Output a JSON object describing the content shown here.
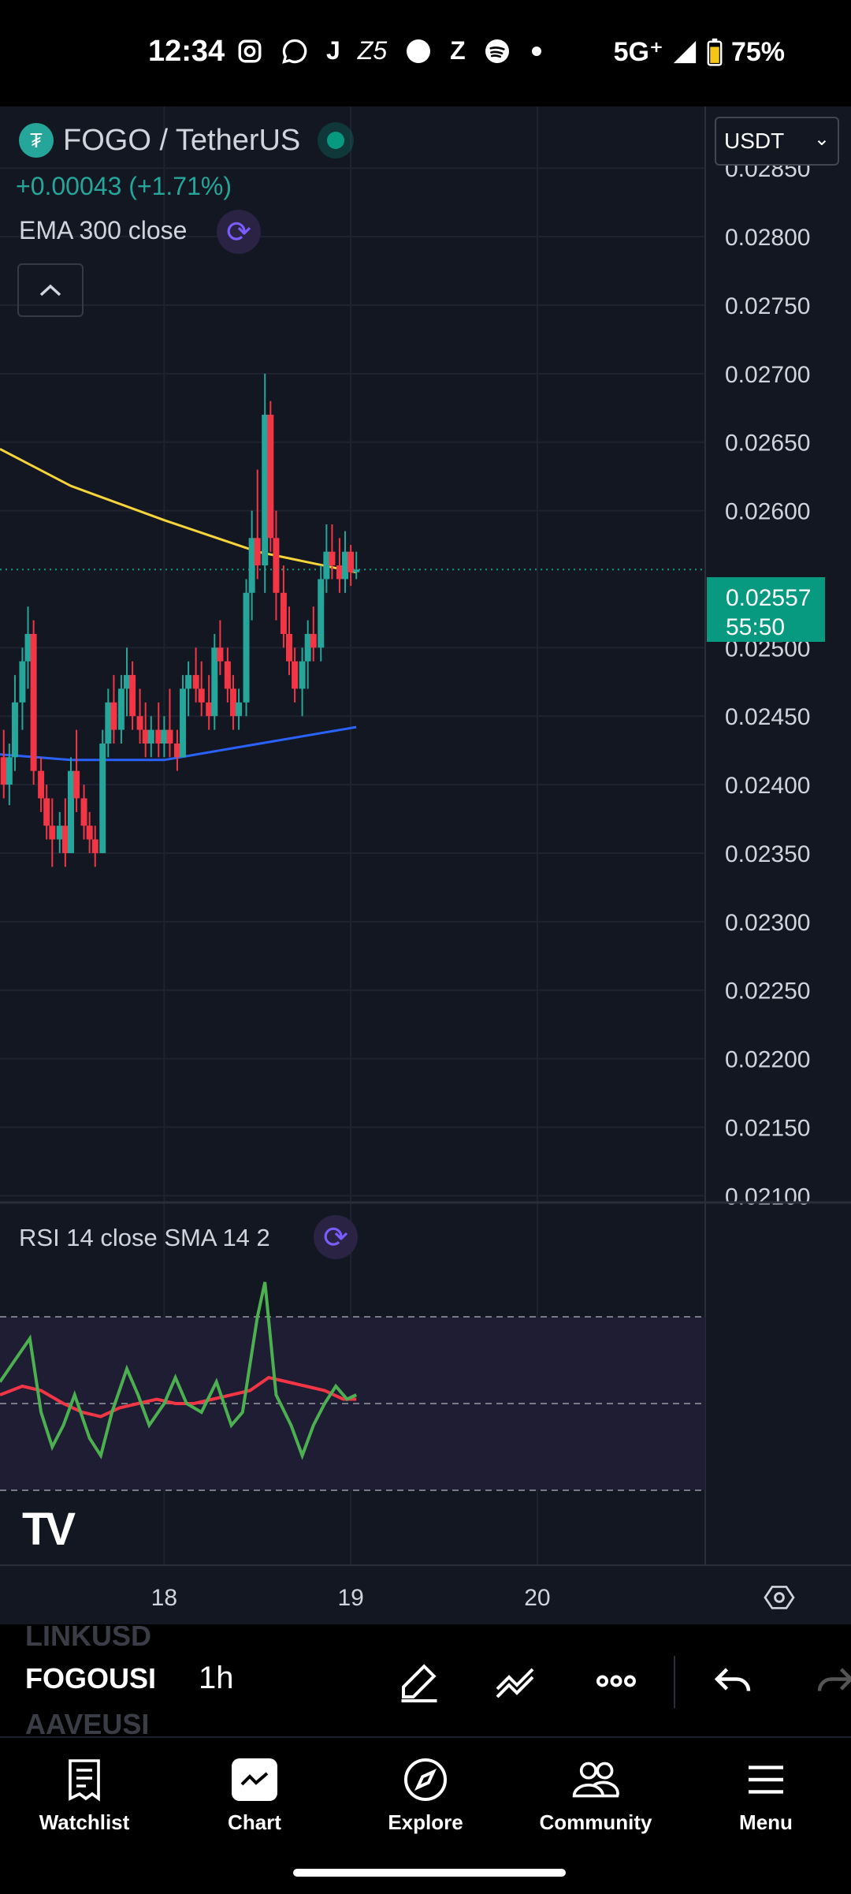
{
  "status_bar": {
    "time": "12:34",
    "app_icons": [
      "instagram-icon",
      "whatsapp-icon",
      "j-icon",
      "z5-icon",
      "circle-icon",
      "z-icon",
      "spotify-icon",
      "dot-icon"
    ],
    "network": "5G⁺",
    "battery": "75%"
  },
  "header": {
    "symbol": "FOGO / TetherUS",
    "change": "+0.00043 (+1.71%)",
    "indicator_label": "EMA 300 close",
    "currency": "USDT"
  },
  "price_tag": {
    "price": "0.02557",
    "countdown": "55:50"
  },
  "rsi": {
    "label": "RSI 14 close SMA 14 2"
  },
  "chart_data": {
    "type": "candlestick",
    "interval": "1h",
    "y_ticks": [
      "0.02850",
      "0.02800",
      "0.02750",
      "0.02700",
      "0.02650",
      "0.02600",
      "0.02500",
      "0.02450",
      "0.02400",
      "0.02350",
      "0.02300",
      "0.02250",
      "0.02200",
      "0.02150",
      "0.02100"
    ],
    "y_tick_values": [
      0.0285,
      0.028,
      0.0275,
      0.027,
      0.0265,
      0.026,
      0.025,
      0.0245,
      0.024,
      0.0235,
      0.023,
      0.0225,
      0.022,
      0.0215,
      0.021
    ],
    "ylim": [
      0.02095,
      0.02895
    ],
    "x_ticks": [
      "18",
      "19",
      "20"
    ],
    "x_tick_values": [
      18,
      19,
      20
    ],
    "xlim": [
      17.12,
      20.9
    ],
    "last_price": 0.02557,
    "colors": {
      "up": "#26a69a",
      "down": "#f23645",
      "ema300": "#f7d53a",
      "ema_blue": "#2962ff",
      "rsi": "#4caf50",
      "rsi_sma": "#f23645"
    },
    "candles": [
      [
        17.14,
        0.0242,
        0.0244,
        0.0239,
        0.024
      ],
      [
        17.17,
        0.024,
        0.0243,
        0.02385,
        0.0242
      ],
      [
        17.2,
        0.0242,
        0.0248,
        0.0241,
        0.0246
      ],
      [
        17.24,
        0.0246,
        0.025,
        0.0244,
        0.0249
      ],
      [
        17.27,
        0.0249,
        0.0253,
        0.0247,
        0.0251
      ],
      [
        17.3,
        0.0251,
        0.0252,
        0.024,
        0.0241
      ],
      [
        17.34,
        0.0241,
        0.0242,
        0.0238,
        0.0239
      ],
      [
        17.37,
        0.0239,
        0.024,
        0.0236,
        0.0237
      ],
      [
        17.4,
        0.0237,
        0.0239,
        0.0234,
        0.0236
      ],
      [
        17.44,
        0.0236,
        0.0238,
        0.0235,
        0.0237
      ],
      [
        17.47,
        0.0237,
        0.0239,
        0.0234,
        0.0235
      ],
      [
        17.5,
        0.0235,
        0.0242,
        0.0235,
        0.0241
      ],
      [
        17.53,
        0.0241,
        0.0244,
        0.0238,
        0.0239
      ],
      [
        17.57,
        0.0239,
        0.024,
        0.0236,
        0.0237
      ],
      [
        17.6,
        0.0237,
        0.0238,
        0.0235,
        0.0236
      ],
      [
        17.63,
        0.0236,
        0.0237,
        0.0234,
        0.0235
      ],
      [
        17.67,
        0.0235,
        0.0244,
        0.0235,
        0.0243
      ],
      [
        17.7,
        0.0243,
        0.0247,
        0.0242,
        0.0246
      ],
      [
        17.73,
        0.0246,
        0.0248,
        0.0243,
        0.0244
      ],
      [
        17.77,
        0.0244,
        0.0248,
        0.0243,
        0.0247
      ],
      [
        17.8,
        0.0247,
        0.025,
        0.0245,
        0.0248
      ],
      [
        17.83,
        0.0248,
        0.0249,
        0.0244,
        0.0245
      ],
      [
        17.87,
        0.0245,
        0.0247,
        0.0243,
        0.0244
      ],
      [
        17.9,
        0.0244,
        0.0246,
        0.0242,
        0.0243
      ],
      [
        17.93,
        0.0243,
        0.0245,
        0.0242,
        0.0244
      ],
      [
        17.97,
        0.0244,
        0.0246,
        0.0242,
        0.0243
      ],
      [
        18.0,
        0.0243,
        0.0245,
        0.0242,
        0.0244
      ],
      [
        18.03,
        0.0244,
        0.0247,
        0.0242,
        0.0243
      ],
      [
        18.07,
        0.0243,
        0.0244,
        0.0241,
        0.0242
      ],
      [
        18.1,
        0.0242,
        0.0248,
        0.0242,
        0.0247
      ],
      [
        18.13,
        0.0247,
        0.0249,
        0.0245,
        0.0248
      ],
      [
        18.17,
        0.0248,
        0.025,
        0.0246,
        0.0247
      ],
      [
        18.2,
        0.0247,
        0.0249,
        0.0245,
        0.0246
      ],
      [
        18.24,
        0.0246,
        0.0248,
        0.0244,
        0.0245
      ],
      [
        18.27,
        0.0245,
        0.0251,
        0.0244,
        0.025
      ],
      [
        18.3,
        0.025,
        0.0252,
        0.0248,
        0.0249
      ],
      [
        18.34,
        0.0249,
        0.025,
        0.0246,
        0.0247
      ],
      [
        18.37,
        0.0247,
        0.0248,
        0.0244,
        0.0245
      ],
      [
        18.4,
        0.0245,
        0.0247,
        0.0244,
        0.0246
      ],
      [
        18.44,
        0.0246,
        0.0255,
        0.0245,
        0.0254
      ],
      [
        18.47,
        0.0254,
        0.026,
        0.0252,
        0.0258
      ],
      [
        18.5,
        0.0258,
        0.0263,
        0.0255,
        0.0256
      ],
      [
        18.54,
        0.0256,
        0.027,
        0.0254,
        0.0267
      ],
      [
        18.57,
        0.0267,
        0.0268,
        0.0257,
        0.0258
      ],
      [
        18.6,
        0.0258,
        0.026,
        0.0252,
        0.0254
      ],
      [
        18.64,
        0.0254,
        0.0256,
        0.025,
        0.0251
      ],
      [
        18.67,
        0.0251,
        0.0253,
        0.0248,
        0.0249
      ],
      [
        18.7,
        0.0249,
        0.025,
        0.0246,
        0.0247
      ],
      [
        18.74,
        0.0247,
        0.025,
        0.0245,
        0.0249
      ],
      [
        18.77,
        0.0249,
        0.0252,
        0.0247,
        0.0251
      ],
      [
        18.8,
        0.0251,
        0.0253,
        0.0249,
        0.025
      ],
      [
        18.84,
        0.025,
        0.0256,
        0.0249,
        0.0255
      ],
      [
        18.87,
        0.0255,
        0.0259,
        0.0254,
        0.0257
      ],
      [
        18.9,
        0.0257,
        0.0259,
        0.0255,
        0.0256
      ],
      [
        18.94,
        0.0256,
        0.0258,
        0.0254,
        0.0255
      ],
      [
        18.97,
        0.0255,
        0.02585,
        0.0254,
        0.0257
      ],
      [
        19.0,
        0.0257,
        0.02575,
        0.02545,
        0.02555
      ],
      [
        19.03,
        0.02555,
        0.0257,
        0.0255,
        0.02557
      ]
    ],
    "ema300": [
      [
        17.12,
        0.02645
      ],
      [
        17.5,
        0.02618
      ],
      [
        18.0,
        0.02593
      ],
      [
        18.5,
        0.0257
      ],
      [
        19.03,
        0.02555
      ]
    ],
    "ema_blue": [
      [
        17.12,
        0.02422
      ],
      [
        17.5,
        0.02418
      ],
      [
        18.0,
        0.02418
      ],
      [
        18.3,
        0.02425
      ],
      [
        18.6,
        0.02432
      ],
      [
        19.03,
        0.02442
      ]
    ],
    "rsi_ylim": [
      20,
      80
    ],
    "rsi_levels": [
      70,
      50,
      30
    ],
    "rsi": [
      [
        17.12,
        55
      ],
      [
        17.2,
        60
      ],
      [
        17.28,
        65
      ],
      [
        17.34,
        48
      ],
      [
        17.4,
        40
      ],
      [
        17.46,
        45
      ],
      [
        17.52,
        52
      ],
      [
        17.6,
        42
      ],
      [
        17.66,
        38
      ],
      [
        17.72,
        48
      ],
      [
        17.8,
        58
      ],
      [
        17.86,
        52
      ],
      [
        17.92,
        45
      ],
      [
        18.0,
        50
      ],
      [
        18.06,
        56
      ],
      [
        18.12,
        50
      ],
      [
        18.2,
        48
      ],
      [
        18.28,
        55
      ],
      [
        18.36,
        45
      ],
      [
        18.42,
        48
      ],
      [
        18.5,
        70
      ],
      [
        18.54,
        78
      ],
      [
        18.6,
        52
      ],
      [
        18.68,
        45
      ],
      [
        18.74,
        38
      ],
      [
        18.8,
        45
      ],
      [
        18.86,
        50
      ],
      [
        18.92,
        54
      ],
      [
        18.98,
        51
      ],
      [
        19.03,
        52
      ]
    ],
    "rsi_sma": [
      [
        17.12,
        52
      ],
      [
        17.24,
        54
      ],
      [
        17.34,
        53
      ],
      [
        17.46,
        50
      ],
      [
        17.56,
        48
      ],
      [
        17.66,
        47
      ],
      [
        17.76,
        49
      ],
      [
        17.86,
        50
      ],
      [
        17.96,
        51
      ],
      [
        18.06,
        50
      ],
      [
        18.16,
        50
      ],
      [
        18.26,
        51
      ],
      [
        18.36,
        52
      ],
      [
        18.46,
        53
      ],
      [
        18.56,
        56
      ],
      [
        18.66,
        55
      ],
      [
        18.76,
        54
      ],
      [
        18.86,
        53
      ],
      [
        18.96,
        51
      ],
      [
        19.03,
        51
      ]
    ]
  },
  "toolbar": {
    "prev_ticker": "LINKUSD",
    "current_ticker": "FOGOUSI",
    "next_ticker": "AAVEUSI",
    "interval": "1h"
  },
  "nav": {
    "items": [
      {
        "label": "Watchlist",
        "icon": "watchlist-icon"
      },
      {
        "label": "Chart",
        "icon": "chart-icon"
      },
      {
        "label": "Explore",
        "icon": "compass-icon"
      },
      {
        "label": "Community",
        "icon": "community-icon"
      },
      {
        "label": "Menu",
        "icon": "menu-icon"
      }
    ]
  }
}
